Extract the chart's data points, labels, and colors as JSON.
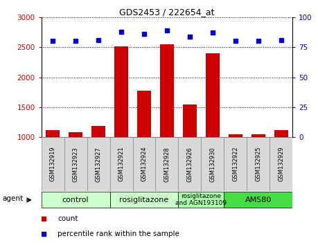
{
  "title": "GDS2453 / 222654_at",
  "samples": [
    "GSM132919",
    "GSM132923",
    "GSM132927",
    "GSM132921",
    "GSM132924",
    "GSM132928",
    "GSM132926",
    "GSM132930",
    "GSM132922",
    "GSM132925",
    "GSM132929"
  ],
  "counts": [
    1120,
    1080,
    1190,
    2510,
    1780,
    2550,
    1550,
    2400,
    1050,
    1050,
    1120
  ],
  "percentiles": [
    80,
    80,
    81,
    88,
    86,
    89,
    84,
    87,
    80,
    80,
    81
  ],
  "bar_color": "#cc0000",
  "dot_color": "#0000cc",
  "ylim_left": [
    1000,
    3000
  ],
  "ylim_right": [
    0,
    100
  ],
  "yticks_left": [
    1000,
    1500,
    2000,
    2500,
    3000
  ],
  "yticks_right": [
    0,
    25,
    50,
    75,
    100
  ],
  "groups": [
    {
      "label": "control",
      "start": 0,
      "end": 3,
      "color": "#ccffcc"
    },
    {
      "label": "rosiglitazone",
      "start": 3,
      "end": 6,
      "color": "#ccffcc"
    },
    {
      "label": "rosiglitazone\nand AGN193109",
      "start": 6,
      "end": 8,
      "color": "#aaffaa"
    },
    {
      "label": "AM580",
      "start": 8,
      "end": 11,
      "color": "#44dd44"
    }
  ],
  "legend_items": [
    {
      "label": "count",
      "color": "#cc0000"
    },
    {
      "label": "percentile rank within the sample",
      "color": "#0000cc"
    }
  ],
  "agent_label": "agent",
  "bg_color": "#ffffff",
  "tick_label_color_left": "#cc0000",
  "tick_label_color_right": "#0000cc",
  "cell_color": "#d8d8d8",
  "cell_edge_color": "#888888"
}
